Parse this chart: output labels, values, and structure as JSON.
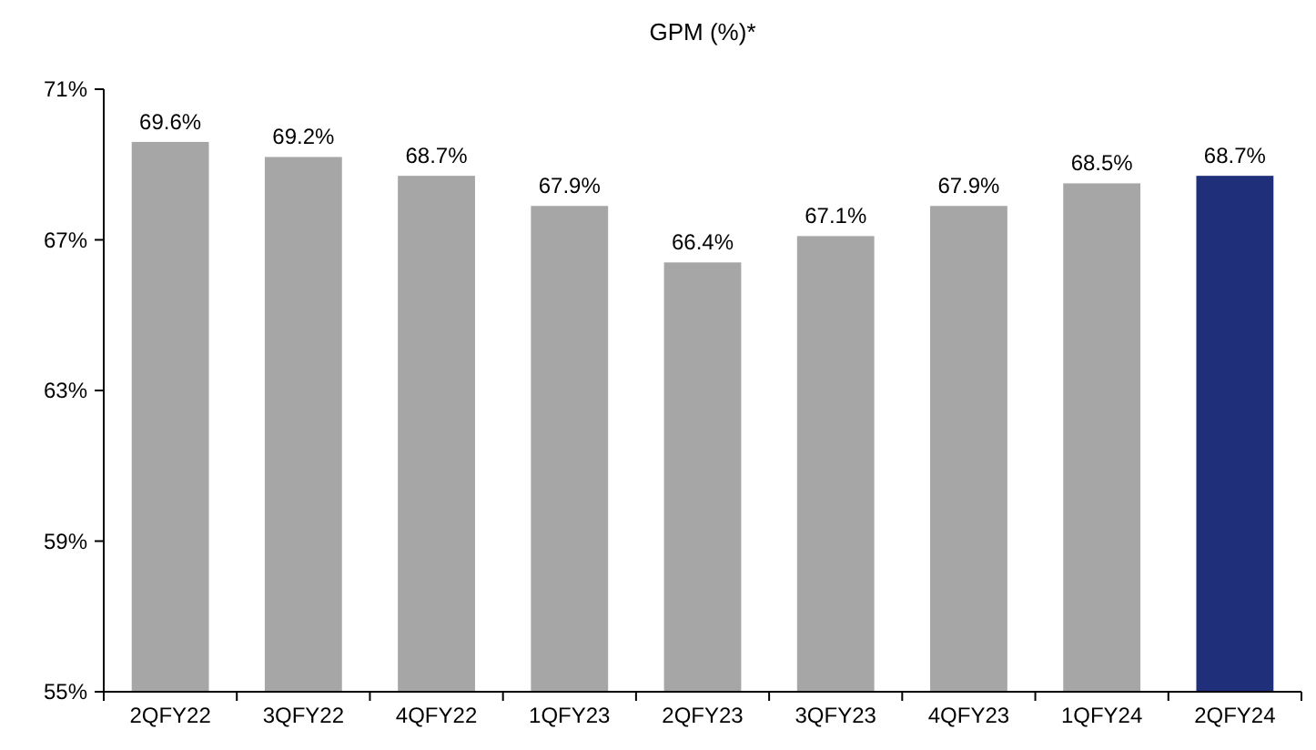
{
  "chart_data": {
    "type": "bar",
    "title": "GPM (%)*",
    "categories": [
      "2QFY22",
      "3QFY22",
      "4QFY22",
      "1QFY23",
      "2QFY23",
      "3QFY23",
      "4QFY23",
      "1QFY24",
      "2QFY24"
    ],
    "values": [
      69.6,
      69.2,
      68.7,
      67.9,
      66.4,
      67.1,
      67.9,
      68.5,
      68.7
    ],
    "value_labels": [
      "69.6%",
      "69.2%",
      "68.7%",
      "67.9%",
      "66.4%",
      "67.1%",
      "67.9%",
      "68.5%",
      "68.7%"
    ],
    "colors": [
      "#a6a6a6",
      "#a6a6a6",
      "#a6a6a6",
      "#a6a6a6",
      "#a6a6a6",
      "#a6a6a6",
      "#a6a6a6",
      "#a6a6a6",
      "#1f2f7a"
    ],
    "ylim": [
      55,
      71
    ],
    "yticks": [
      {
        "value": 55,
        "label": "55%"
      },
      {
        "value": 59,
        "label": "59%"
      },
      {
        "value": 63,
        "label": "63%"
      },
      {
        "value": 67,
        "label": "67%"
      },
      {
        "value": 71,
        "label": "71%"
      }
    ]
  }
}
